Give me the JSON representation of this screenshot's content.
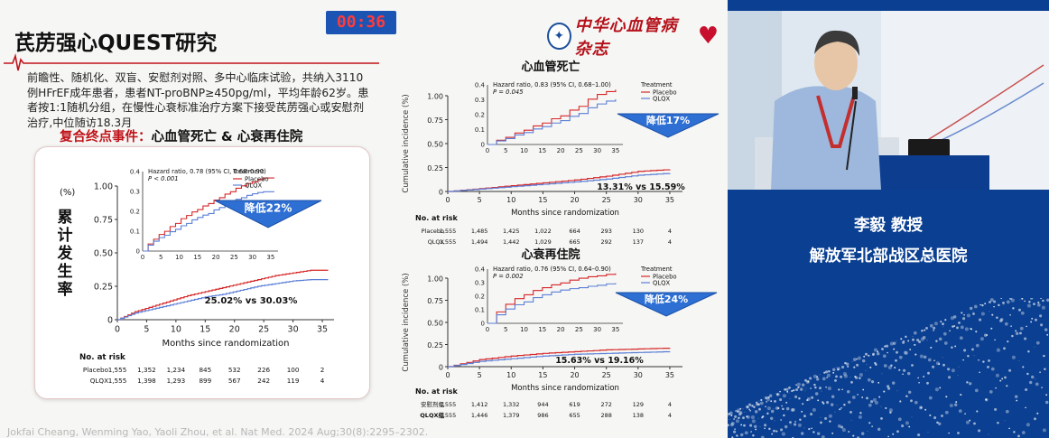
{
  "timer": "00:36",
  "slide": {
    "title": "芪苈强心QUEST研究",
    "logo_text": "中华心血管病杂志",
    "intro": "前瞻性、随机化、双盲、安慰剂对照、多中心临床试验，共纳入3110例HFrEF成年患者，患者NT-proBNP≥450pg/ml，平均年龄62岁。患者按1:1随机分组，在慢性心衰标准治疗方案下接受芪苈强心或安慰剂治疗,中位随访18.3月",
    "endpoint_label": "复合终点事件：",
    "endpoint_value": "心血管死亡 & 心衰再住院",
    "citation": "Jokfai Cheang, Wenming Yao, Yaoli Zhou, et al. Nat Med. 2024 Aug;30(8):2295–2302."
  },
  "speaker": {
    "name": "李毅 教授",
    "organization": "解放军北部战区总医院"
  },
  "chart_data": [
    {
      "type": "line",
      "title": "",
      "ylabel": "累计发生率 (%)",
      "xlabel": "Months since randomization",
      "x_ticks": [
        0,
        5,
        10,
        15,
        20,
        25,
        30,
        35
      ],
      "y_ticks": [
        0,
        0.25,
        0.5,
        0.75,
        1.0
      ],
      "ylim": [
        0,
        1.0
      ],
      "inset_y_ticks": [
        0,
        0.1,
        0.2,
        0.3,
        0.4
      ],
      "hazard_ratio": "Hazard ratio, 0.78 (95% CI, 0.68–0.90)",
      "p_value": "P < 0.001",
      "legend_title": "Treatment",
      "reduction_label": "降低22%",
      "comparison_label": "25.02% vs 30.03%",
      "series": [
        {
          "name": "Placebo",
          "color": "#d62728",
          "x": [
            0,
            3,
            6,
            9,
            12,
            15,
            18,
            21,
            24,
            27,
            30,
            33,
            36
          ],
          "values": [
            0,
            0.06,
            0.1,
            0.14,
            0.18,
            0.21,
            0.24,
            0.27,
            0.3,
            0.33,
            0.35,
            0.37,
            0.37
          ]
        },
        {
          "name": "QLQX",
          "color": "#5b7fd6",
          "x": [
            0,
            3,
            6,
            9,
            12,
            15,
            18,
            21,
            24,
            27,
            30,
            33,
            36
          ],
          "values": [
            0,
            0.05,
            0.08,
            0.11,
            0.14,
            0.17,
            0.19,
            0.22,
            0.25,
            0.27,
            0.29,
            0.3,
            0.3
          ]
        }
      ],
      "risk_table": {
        "title": "No. at risk",
        "rows": [
          {
            "label": "Placebo",
            "values": [
              "1,555",
              "1,352",
              "1,234",
              "845",
              "532",
              "226",
              "100",
              "2"
            ]
          },
          {
            "label": "QLQX",
            "values": [
              "1,555",
              "1,398",
              "1,293",
              "899",
              "567",
              "242",
              "119",
              "4"
            ]
          }
        ]
      }
    },
    {
      "type": "line",
      "title": "心血管死亡",
      "ylabel": "Cumulative incidence (%)",
      "xlabel": "Months since randomization",
      "x_ticks": [
        0,
        5,
        10,
        15,
        20,
        25,
        30,
        35
      ],
      "y_ticks": [
        0,
        0.25,
        0.5,
        0.75,
        1.0
      ],
      "ylim": [
        0,
        1.0
      ],
      "inset_y_ticks": [
        0,
        0.1,
        0.2,
        0.3,
        0.4
      ],
      "hazard_ratio": "Hazard ratio, 0.83 (95% CI, 0.68–1.00)",
      "p_value": "P = 0.045",
      "legend_title": "Treatment",
      "reduction_label": "降低17%",
      "comparison_label": "13.31% vs 15.59%",
      "series": [
        {
          "name": "Placebo",
          "color": "#d62728",
          "x": [
            0,
            5,
            10,
            15,
            20,
            25,
            30,
            35
          ],
          "values": [
            0,
            0.03,
            0.06,
            0.09,
            0.12,
            0.16,
            0.21,
            0.23
          ]
        },
        {
          "name": "QLQX",
          "color": "#5b7fd6",
          "x": [
            0,
            5,
            10,
            15,
            20,
            25,
            30,
            35
          ],
          "values": [
            0,
            0.025,
            0.05,
            0.075,
            0.1,
            0.13,
            0.17,
            0.19
          ]
        }
      ],
      "risk_table": {
        "title": "No. at risk",
        "rows": [
          {
            "label": "Placebo",
            "values": [
              "1,555",
              "1,485",
              "1,425",
              "1,022",
              "664",
              "293",
              "130",
              "4"
            ]
          },
          {
            "label": "QLQX",
            "values": [
              "1,555",
              "1,494",
              "1,442",
              "1,029",
              "665",
              "292",
              "137",
              "4"
            ]
          }
        ]
      }
    },
    {
      "type": "line",
      "title": "心衰再住院",
      "ylabel": "Cumulative incidence (%)",
      "xlabel": "Months since randomization",
      "x_ticks": [
        0,
        5,
        10,
        15,
        20,
        25,
        30,
        35
      ],
      "y_ticks": [
        0,
        0.25,
        0.5,
        0.75,
        1.0
      ],
      "ylim": [
        0,
        1.0
      ],
      "inset_y_ticks": [
        0,
        0.1,
        0.2,
        0.3,
        0.4
      ],
      "hazard_ratio": "Hazard ratio, 0.76 (95% CI, 0.64–0.90)",
      "p_value": "P = 0.002",
      "legend_title": "Treatment",
      "reduction_label": "降低24%",
      "comparison_label": "15.63% vs 19.16%",
      "series": [
        {
          "name": "Placebo",
          "color": "#d62728",
          "x": [
            0,
            5,
            10,
            15,
            20,
            25,
            30,
            35
          ],
          "values": [
            0,
            0.08,
            0.12,
            0.15,
            0.17,
            0.19,
            0.2,
            0.21
          ]
        },
        {
          "name": "QLQX",
          "color": "#5b7fd6",
          "x": [
            0,
            5,
            10,
            15,
            20,
            25,
            30,
            35
          ],
          "values": [
            0,
            0.06,
            0.09,
            0.12,
            0.14,
            0.15,
            0.16,
            0.17
          ]
        }
      ],
      "risk_table": {
        "title": "No. at risk",
        "rows": [
          {
            "label": "安慰剂组",
            "values": [
              "1,555",
              "1,412",
              "1,332",
              "944",
              "619",
              "272",
              "129",
              "4"
            ]
          },
          {
            "label": "QLQX组",
            "values": [
              "1,555",
              "1,446",
              "1,379",
              "986",
              "655",
              "288",
              "138",
              "4"
            ]
          }
        ]
      }
    }
  ]
}
